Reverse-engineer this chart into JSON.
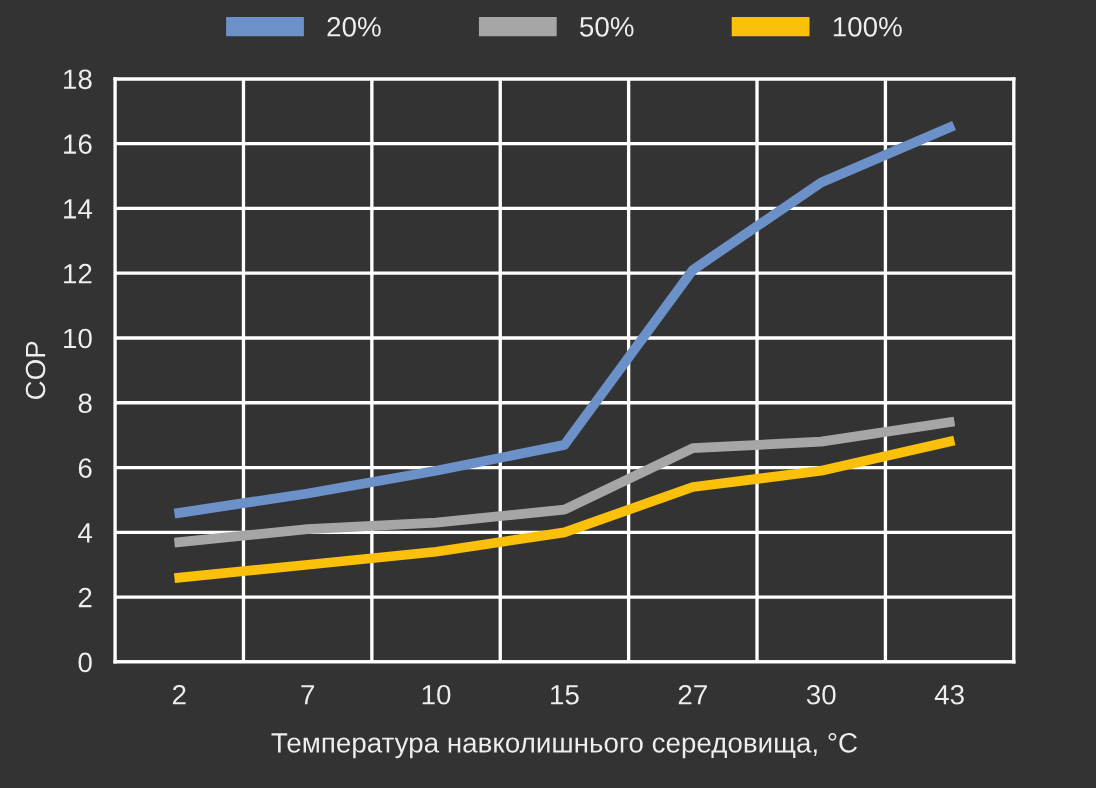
{
  "chart_data": {
    "type": "line",
    "xlabel": "Температура навколишнього середовища, °C",
    "ylabel": "COP",
    "categories": [
      "2",
      "7",
      "10",
      "15",
      "27",
      "30",
      "43"
    ],
    "series": [
      {
        "name": "20%",
        "color": "#6b91c8",
        "values": [
          4.6,
          5.2,
          5.9,
          6.7,
          12.1,
          14.8,
          16.5
        ]
      },
      {
        "name": "50%",
        "color": "#a6a6a6",
        "values": [
          3.7,
          4.1,
          4.3,
          4.7,
          6.6,
          6.8,
          7.4
        ]
      },
      {
        "name": "100%",
        "color": "#fbc00a",
        "values": [
          2.6,
          3.0,
          3.4,
          4.0,
          5.4,
          5.9,
          6.8
        ]
      }
    ],
    "ylim": [
      0,
      18
    ],
    "yticks": [
      0,
      2,
      4,
      6,
      8,
      10,
      12,
      14,
      16,
      18
    ],
    "grid": true,
    "legend": "top",
    "marker": "none",
    "line_style": "solid"
  }
}
